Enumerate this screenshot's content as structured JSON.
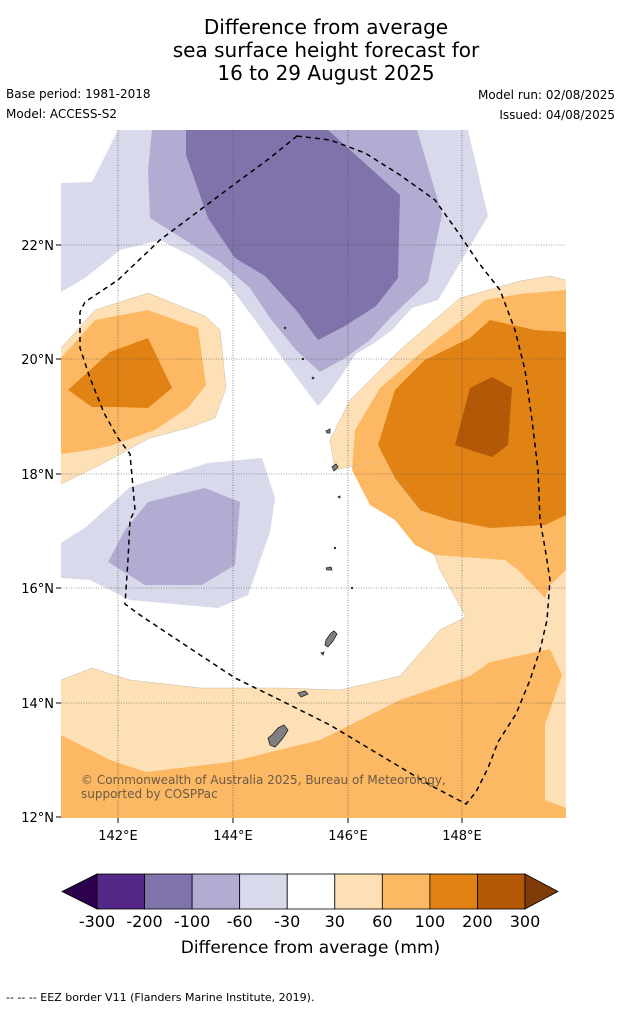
{
  "title": {
    "line1": "Difference from average",
    "line2": "sea surface height forecast for",
    "line3": "16 to 29 August 2025"
  },
  "meta": {
    "base_period": "Base period: 1981-2018",
    "model": "Model: ACCESS-S2",
    "model_run": "Model run: 02/08/2025",
    "issued": "Issued: 04/08/2025"
  },
  "map": {
    "lat_labels": [
      "22°N",
      "20°N",
      "18°N",
      "16°N",
      "14°N",
      "12°N"
    ],
    "lon_labels": [
      "142°E",
      "144°E",
      "146°E",
      "148°E"
    ],
    "lat_range": [
      12,
      23.95
    ],
    "lon_range": [
      141.0,
      149.8
    ],
    "credit": "© Commonwealth of Australia 2025, Bureau of Meteorology, supported by COSPPac"
  },
  "colorbar": {
    "ticks": [
      "-300",
      "-200",
      "-100",
      "-60",
      "-30",
      "30",
      "60",
      "100",
      "200",
      "300"
    ],
    "colors": [
      "#2d004b",
      "#542788",
      "#8073ac",
      "#b2abd2",
      "#d8daeb",
      "#ffffff",
      "#fee0b6",
      "#fdb863",
      "#e08214",
      "#b35806",
      "#7f3b08"
    ],
    "label": "Difference from average (mm)"
  },
  "footer": "-- -- -- EEZ border V11 (Flanders Marine Institute, 2019)."
}
